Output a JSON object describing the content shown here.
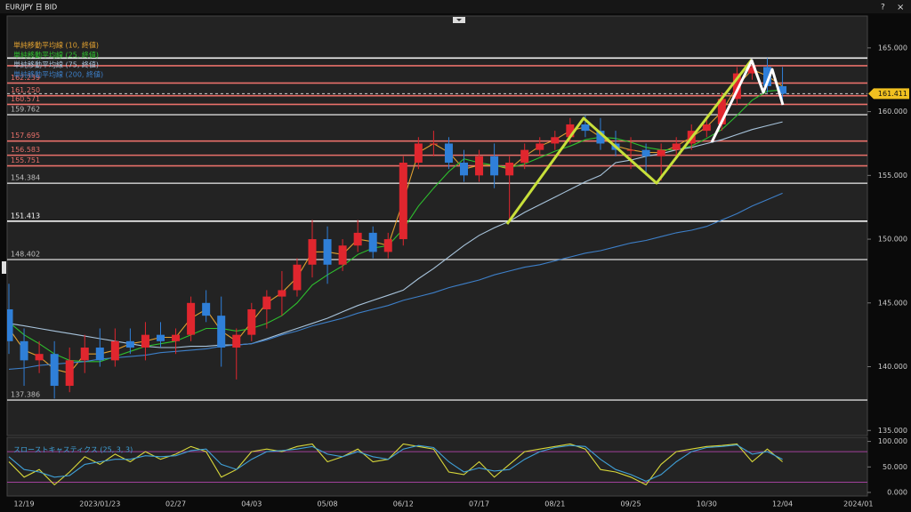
{
  "window": {
    "title": "EUR/JPY 日 BID",
    "help": "?",
    "close": "×"
  },
  "chart_data": [
    {
      "type": "candlestick",
      "categories": [
        null,
        "12/19",
        null,
        null,
        null,
        null,
        "2023/01/23",
        null,
        null,
        null,
        null,
        "02/27",
        null,
        null,
        null,
        null,
        "04/03",
        null,
        null,
        null,
        null,
        "05/08",
        null,
        null,
        null,
        null,
        "06/12",
        null,
        null,
        null,
        null,
        "07/17",
        null,
        null,
        null,
        null,
        "08/21",
        null,
        null,
        null,
        null,
        "09/25",
        null,
        null,
        null,
        null,
        "10/30",
        null,
        null,
        null,
        null,
        "12/04",
        null,
        null,
        null,
        null,
        "2024/01"
      ],
      "open": [
        144.5,
        142.0,
        140.5,
        141.0,
        138.5,
        140.5,
        141.5,
        140.5,
        142.0,
        141.5,
        142.5,
        142.0,
        142.5,
        145.0,
        144.0,
        141.5,
        142.5,
        144.5,
        145.5,
        146.0,
        148.0,
        150.0,
        148.0,
        149.5,
        150.5,
        149.0,
        150.0,
        156.0,
        157.5,
        157.5,
        156.0,
        155.0,
        156.5,
        155.0,
        156.0,
        157.0,
        157.5,
        158.0,
        159.0,
        158.5,
        157.5,
        157.0,
        157.0,
        156.5,
        157.0,
        157.5,
        158.5,
        159.0,
        161.0,
        163.0,
        163.5,
        162.0,
        null,
        null,
        null,
        null,
        null
      ],
      "high": [
        146.5,
        143.0,
        142.0,
        142.0,
        141.5,
        142.5,
        143.0,
        143.0,
        143.0,
        143.5,
        143.5,
        143.0,
        145.5,
        146.0,
        145.5,
        143.0,
        145.0,
        146.0,
        147.5,
        148.5,
        151.5,
        151.0,
        150.0,
        151.5,
        151.0,
        150.5,
        156.5,
        158.0,
        158.5,
        158.0,
        157.0,
        157.0,
        157.5,
        156.5,
        157.5,
        158.0,
        158.5,
        159.5,
        159.7,
        159.5,
        158.5,
        158.0,
        157.5,
        157.5,
        158.0,
        159.0,
        159.5,
        161.5,
        163.5,
        164.0,
        164.2,
        163.5,
        null,
        null,
        null,
        null,
        null
      ],
      "low": [
        141.0,
        138.5,
        139.5,
        137.5,
        138.0,
        139.5,
        140.0,
        140.0,
        141.0,
        140.5,
        141.5,
        141.0,
        142.0,
        143.5,
        140.0,
        139.0,
        142.0,
        143.0,
        144.0,
        145.5,
        147.0,
        146.5,
        147.5,
        149.0,
        148.5,
        148.5,
        149.5,
        155.5,
        156.5,
        155.5,
        154.5,
        154.5,
        154.0,
        151.5,
        155.5,
        156.5,
        157.0,
        157.5,
        158.0,
        157.0,
        156.5,
        155.5,
        155.0,
        154.6,
        156.5,
        157.0,
        158.0,
        158.5,
        160.5,
        162.5,
        161.5,
        160.8,
        null,
        null,
        null,
        null,
        null
      ],
      "close": [
        142.0,
        140.5,
        141.0,
        138.5,
        140.5,
        141.5,
        140.5,
        142.0,
        141.5,
        142.5,
        142.0,
        142.5,
        145.0,
        144.0,
        141.5,
        142.5,
        144.5,
        145.5,
        146.0,
        148.0,
        150.0,
        148.0,
        149.5,
        150.5,
        149.0,
        150.0,
        156.0,
        157.5,
        157.5,
        156.0,
        155.0,
        156.5,
        155.0,
        156.0,
        157.0,
        157.5,
        158.0,
        159.0,
        158.5,
        157.5,
        157.0,
        157.0,
        156.5,
        157.0,
        157.5,
        158.5,
        159.0,
        161.0,
        163.0,
        163.5,
        162.0,
        161.4,
        null,
        null,
        null,
        null,
        null
      ],
      "up_color": "#e0262e",
      "down_color": "#2f7fd8",
      "series": [
        {
          "name": "単純移動平均線 (10, 終値)",
          "color": "#e0a030",
          "values": [
            143.0,
            141.3,
            140.8,
            139.8,
            139.5,
            141.0,
            141.0,
            141.3,
            141.8,
            142.0,
            142.3,
            142.3,
            143.8,
            144.5,
            142.8,
            142.0,
            143.5,
            145.0,
            145.8,
            147.0,
            149.0,
            149.0,
            148.8,
            150.0,
            149.8,
            149.5,
            153.0,
            156.8,
            157.5,
            156.8,
            155.5,
            155.8,
            155.8,
            155.5,
            156.5,
            157.3,
            157.8,
            158.5,
            158.8,
            158.0,
            157.3,
            157.0,
            156.8,
            156.8,
            157.3,
            158.0,
            158.8,
            160.0,
            162.0,
            163.3,
            162.8,
            162.0,
            null,
            null,
            null,
            null,
            null
          ]
        },
        {
          "name": "単純移動平均線 (25, 終値)",
          "color": "#2ec02e",
          "values": [
            143.5,
            142.5,
            141.8,
            141.0,
            140.5,
            140.4,
            140.4,
            140.8,
            141.2,
            141.6,
            141.8,
            142.0,
            142.5,
            143.0,
            143.0,
            142.8,
            143.0,
            143.4,
            144.0,
            145.0,
            146.4,
            147.2,
            147.9,
            148.8,
            149.3,
            149.5,
            150.8,
            152.6,
            154.0,
            155.3,
            156.3,
            156.0,
            155.8,
            155.6,
            155.9,
            156.4,
            156.9,
            157.3,
            157.8,
            158.0,
            157.9,
            157.6,
            157.2,
            157.0,
            157.0,
            157.3,
            157.9,
            158.6,
            159.7,
            160.9,
            161.6,
            161.7,
            null,
            null,
            null,
            null,
            null
          ]
        },
        {
          "name": "単純移動平均線 (75, 終値)",
          "color": "#a8c4dc",
          "values": [
            143.4,
            143.2,
            143.0,
            142.8,
            142.6,
            142.4,
            142.2,
            142.0,
            141.8,
            141.6,
            141.5,
            141.5,
            141.6,
            141.6,
            141.7,
            141.7,
            141.8,
            142.2,
            142.6,
            143.0,
            143.4,
            143.8,
            144.3,
            144.8,
            145.2,
            145.6,
            146.0,
            146.9,
            147.7,
            148.6,
            149.5,
            150.3,
            150.9,
            151.4,
            152.1,
            152.7,
            153.3,
            153.9,
            154.5,
            155.0,
            156.0,
            156.2,
            156.5,
            156.7,
            157.0,
            157.2,
            157.5,
            157.8,
            158.2,
            158.6,
            158.9,
            159.2,
            null,
            null,
            null,
            null,
            null
          ]
        },
        {
          "name": "単純移動平均線 (200, 終値)",
          "color": "#3d7fc8",
          "values": [
            139.8,
            139.9,
            140.1,
            140.2,
            140.3,
            140.4,
            140.6,
            140.7,
            140.8,
            140.9,
            141.1,
            141.2,
            141.3,
            141.4,
            141.6,
            141.7,
            141.8,
            142.1,
            142.5,
            142.8,
            143.2,
            143.5,
            143.8,
            144.2,
            144.5,
            144.8,
            145.2,
            145.5,
            145.8,
            146.2,
            146.5,
            146.8,
            147.2,
            147.5,
            147.8,
            148.0,
            148.3,
            148.6,
            148.9,
            149.1,
            149.4,
            149.7,
            149.9,
            150.2,
            150.5,
            150.7,
            151.0,
            151.5,
            152.0,
            152.6,
            153.1,
            153.6,
            null,
            null,
            null,
            null,
            null
          ]
        }
      ],
      "levels": [
        {
          "value": 164.2,
          "color": "#f0f0f0"
        },
        {
          "value": 163.6,
          "color": "#e8706a"
        },
        {
          "value": 162.239,
          "label": "162.239",
          "color": "#e8706a"
        },
        {
          "value": 161.25,
          "label": "161.250",
          "color": "#e8706a"
        },
        {
          "value": 160.571,
          "label": "160.571",
          "color": "#e8706a"
        },
        {
          "value": 159.762,
          "label": "159.762",
          "color": "#bdbdbd"
        },
        {
          "value": 157.695,
          "label": "157.695",
          "color": "#e8706a"
        },
        {
          "value": 156.583,
          "label": "156.583",
          "color": "#e8706a"
        },
        {
          "value": 155.751,
          "label": "155.751",
          "color": "#e8706a"
        },
        {
          "value": 154.384,
          "label": "154.384",
          "color": "#bdbdbd"
        },
        {
          "value": 151.413,
          "label": "151.413",
          "color": "#f5f5f5"
        },
        {
          "value": 148.402,
          "label": "148.402",
          "color": "#bdbdbd"
        },
        {
          "value": 137.386,
          "label": "137.386",
          "color": "#bdbdbd"
        }
      ],
      "last_price": 161.411,
      "last_price_color": "#f0c020",
      "ylim": [
        134.6,
        167.5
      ],
      "yticks": [
        {
          "value": 135,
          "label": "135.000"
        },
        {
          "value": 140,
          "label": "140.000"
        },
        {
          "value": 145,
          "label": "145.000"
        },
        {
          "value": 150,
          "label": "150.000"
        },
        {
          "value": 155,
          "label": "155.000"
        },
        {
          "value": 160,
          "label": "160.000"
        },
        {
          "value": 165,
          "label": "165.000"
        }
      ]
    },
    {
      "type": "line",
      "title": "スローストキャスティクス (25, 3, 3)",
      "series": [
        {
          "color": "#d8d83a",
          "values": [
            60,
            30,
            45,
            15,
            40,
            70,
            55,
            75,
            60,
            80,
            65,
            75,
            90,
            80,
            30,
            45,
            80,
            85,
            80,
            90,
            95,
            60,
            70,
            85,
            60,
            65,
            95,
            90,
            85,
            40,
            35,
            60,
            30,
            55,
            80,
            85,
            90,
            95,
            85,
            45,
            40,
            30,
            15,
            55,
            80,
            85,
            90,
            92,
            95,
            60,
            85,
            60,
            null,
            null,
            null,
            null,
            null
          ]
        },
        {
          "color": "#3fa0d8",
          "values": [
            70,
            45,
            40,
            30,
            33,
            55,
            60,
            65,
            65,
            72,
            70,
            72,
            82,
            85,
            55,
            45,
            65,
            80,
            82,
            85,
            90,
            75,
            70,
            80,
            70,
            65,
            85,
            92,
            88,
            60,
            40,
            48,
            42,
            45,
            65,
            80,
            88,
            92,
            90,
            65,
            45,
            35,
            22,
            35,
            60,
            80,
            88,
            90,
            93,
            75,
            80,
            65,
            null,
            null,
            null,
            null,
            null
          ]
        }
      ],
      "ref_lines": [
        80,
        20
      ],
      "ref_color": "#a0409a",
      "ylim": [
        -7,
        108
      ],
      "yticks": [
        {
          "value": 0,
          "label": "0.000"
        },
        {
          "value": 50,
          "label": "50.000"
        },
        {
          "value": 100,
          "label": "100.000"
        }
      ]
    }
  ]
}
